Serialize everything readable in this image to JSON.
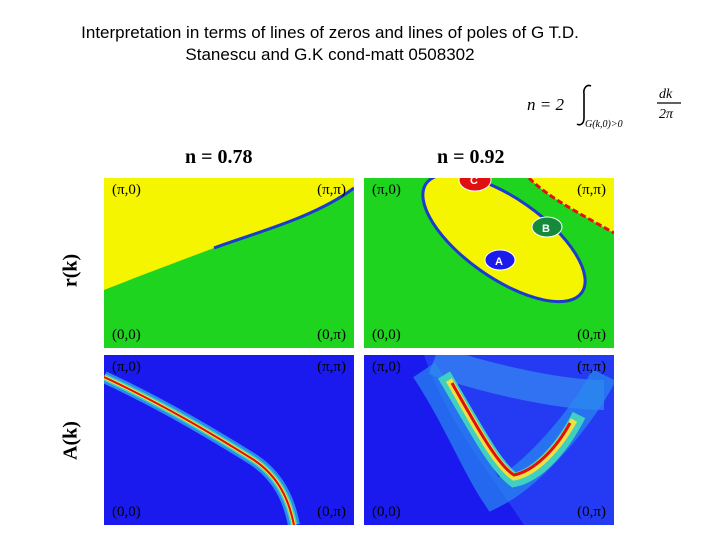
{
  "slide": {
    "title_line1": "Interpretation in terms of lines of zeros and lines of poles of G T.D.",
    "title_line2": "Stanescu and G.K cond-matt 0508302"
  },
  "formula": {
    "lhs": "n = 2",
    "subscript": "G(k,0)>0",
    "numerator": "dk",
    "denominator": "2π"
  },
  "plots": {
    "left_label": "n = 0.78",
    "right_label": "n = 0.92",
    "row1_label": "r(k)",
    "row2_label": "A(k)",
    "corners": {
      "top_left": "(π,0)",
      "top_right": "(π,π)",
      "bottom_left": "(0,0)",
      "bottom_right": "(0,π)"
    },
    "points": {
      "a": "A",
      "b": "B",
      "c": "C"
    },
    "colors": {
      "yellow": "#f5f500",
      "green": "#1ed41e",
      "blue": "#1a1aee",
      "red": "#e01010"
    }
  }
}
